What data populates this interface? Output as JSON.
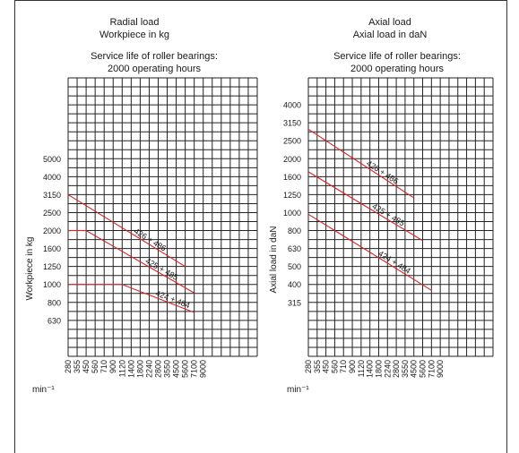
{
  "chart_data": [
    {
      "type": "line",
      "title": "Radial load",
      "subtitle": "Workpiece in kg",
      "note_line1": "Service life of roller bearings:",
      "note_line2": "2000 operating hours",
      "ylabel": "Workpiece in kg",
      "xlabel": "min⁻¹",
      "x_tick_labels": [
        "280",
        "355",
        "450",
        "560",
        "710",
        "900",
        "1120",
        "1400",
        "1800",
        "2240",
        "2800",
        "3550",
        "4500",
        "5600",
        "7100",
        "9000"
      ],
      "y_tick_labels": [
        "630",
        "800",
        "1000",
        "1250",
        "1600",
        "2000",
        "2500",
        "3150",
        "4000",
        "5000"
      ],
      "grid": true,
      "series": [
        {
          "name": "426 + 486",
          "x": [
            280,
            5600
          ],
          "y": [
            3150,
            1250
          ]
        },
        {
          "name": "425 + 485",
          "x": [
            280,
            450,
            7100
          ],
          "y": [
            2000,
            2000,
            900
          ]
        },
        {
          "name": "424 + 484",
          "x": [
            280,
            1120,
            7100
          ],
          "y": [
            1000,
            1000,
            700
          ]
        }
      ],
      "color": "#dd2222"
    },
    {
      "type": "line",
      "title": "Axial load",
      "subtitle": "Axial load in daN",
      "note_line1": "Service life of roller bearings:",
      "note_line2": "2000 operating hours",
      "ylabel": "Axial load in daN",
      "xlabel": "min⁻¹",
      "x_tick_labels": [
        "280",
        "355",
        "450",
        "560",
        "710",
        "900",
        "1120",
        "1400",
        "1800",
        "2240",
        "2800",
        "3550",
        "4500",
        "5600",
        "7100",
        "9000"
      ],
      "y_tick_labels": [
        "315",
        "400",
        "500",
        "630",
        "800",
        "1000",
        "1250",
        "1600",
        "2000",
        "2500",
        "3150",
        "4000"
      ],
      "grid": true,
      "series": [
        {
          "name": "426 + 486",
          "x": [
            280,
            4500
          ],
          "y": [
            2900,
            1200
          ]
        },
        {
          "name": "425 + 485",
          "x": [
            280,
            5600
          ],
          "y": [
            1700,
            700
          ]
        },
        {
          "name": "424 + 484",
          "x": [
            280,
            7100
          ],
          "y": [
            980,
            370
          ]
        }
      ],
      "color": "#dd2222"
    }
  ]
}
